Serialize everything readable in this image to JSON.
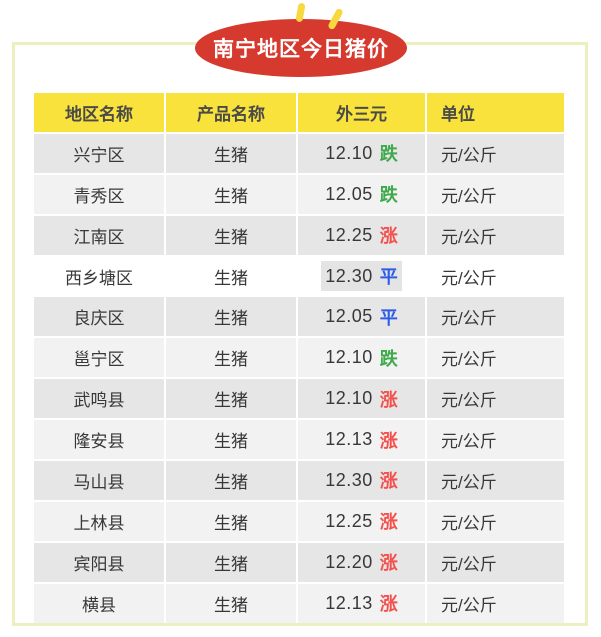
{
  "title": "南宁地区今日猪价",
  "colors": {
    "frame_border": "#ecf0bf",
    "banner_red": "#d63a2f",
    "banner_text": "#ffffff",
    "sparkle_yellow": "#f7d83f",
    "header_bg": "#f9e23b",
    "header_text": "#4a4a4a",
    "row_dark_bg": "#e6e6e6",
    "row_light_bg": "#f2f2f2",
    "row_selected_bg": "#ffffff",
    "selection_highlight": "#e4e4e4",
    "trend_down_green": "#3fa94c",
    "trend_up_red": "#f4514d",
    "trend_flat_blue": "#2e5ce6",
    "cell_text": "#383838"
  },
  "table": {
    "columns": [
      "地区名称",
      "产品名称",
      "外三元",
      "单位"
    ],
    "rows": [
      {
        "region": "兴宁区",
        "product": "生猪",
        "price": "12.10",
        "status": "跌",
        "trend": "down",
        "unit": "元/公斤",
        "selected": false
      },
      {
        "region": "青秀区",
        "product": "生猪",
        "price": "12.05",
        "status": "跌",
        "trend": "down",
        "unit": "元/公斤",
        "selected": false
      },
      {
        "region": "江南区",
        "product": "生猪",
        "price": "12.25",
        "status": "涨",
        "trend": "up",
        "unit": "元/公斤",
        "selected": false
      },
      {
        "region": "西乡塘区",
        "product": "生猪",
        "price": "12.30",
        "status": "平",
        "trend": "flat",
        "unit": "元/公斤",
        "selected": true
      },
      {
        "region": "良庆区",
        "product": "生猪",
        "price": "12.05",
        "status": "平",
        "trend": "flat",
        "unit": "元/公斤",
        "selected": false
      },
      {
        "region": "邕宁区",
        "product": "生猪",
        "price": "12.10",
        "status": "跌",
        "trend": "down",
        "unit": "元/公斤",
        "selected": false
      },
      {
        "region": "武鸣县",
        "product": "生猪",
        "price": "12.10",
        "status": "涨",
        "trend": "up",
        "unit": "元/公斤",
        "selected": false
      },
      {
        "region": "隆安县",
        "product": "生猪",
        "price": "12.13",
        "status": "涨",
        "trend": "up",
        "unit": "元/公斤",
        "selected": false
      },
      {
        "region": "马山县",
        "product": "生猪",
        "price": "12.30",
        "status": "涨",
        "trend": "up",
        "unit": "元/公斤",
        "selected": false
      },
      {
        "region": "上林县",
        "product": "生猪",
        "price": "12.25",
        "status": "涨",
        "trend": "up",
        "unit": "元/公斤",
        "selected": false
      },
      {
        "region": "宾阳县",
        "product": "生猪",
        "price": "12.20",
        "status": "涨",
        "trend": "up",
        "unit": "元/公斤",
        "selected": false
      },
      {
        "region": "横县",
        "product": "生猪",
        "price": "12.13",
        "status": "涨",
        "trend": "up",
        "unit": "元/公斤",
        "selected": false
      }
    ]
  }
}
